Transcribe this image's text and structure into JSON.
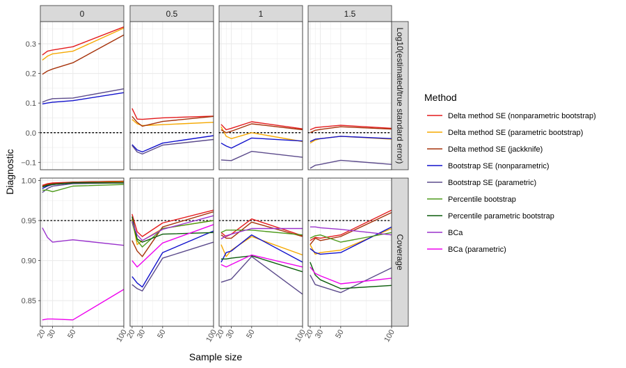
{
  "chart_data": {
    "type": "line",
    "xlabel": "Sample size",
    "ylabel": "Diagnostic",
    "x": [
      20,
      25,
      30,
      50,
      100
    ],
    "x_ticks": [
      20,
      30,
      50,
      100
    ],
    "x_lim": [
      18,
      100
    ],
    "columns": [
      "0",
      "0.5",
      "1",
      "1.5"
    ],
    "legend_title": "Method",
    "rows": [
      {
        "label": "Log10(estimated/true standard error)",
        "ylim": [
          -0.125,
          0.375
        ],
        "yticks": [
          -0.1,
          0.0,
          0.1,
          0.2,
          0.3
        ],
        "ytick_labels": [
          "−0.1",
          "0.0",
          "0.1",
          "0.2",
          "0.3"
        ],
        "reference": 0.0
      },
      {
        "label": "Coverage",
        "ylim": [
          0.818,
          1.003
        ],
        "yticks": [
          0.85,
          0.9,
          0.95,
          1.0
        ],
        "ytick_labels": [
          "0.85",
          "0.90",
          "0.95",
          "1.00"
        ],
        "reference": 0.95
      }
    ],
    "series": [
      {
        "name": "Delta method SE (nonparametric bootstrap)",
        "color": "#e41a1c",
        "values": [
          [
            [
              0.262,
              0.275,
              0.279,
              0.29,
              0.357
            ],
            [
              0.082,
              0.046,
              0.045,
              0.05,
              0.056
            ],
            [
              0.028,
              0.01,
              0.015,
              0.037,
              0.013
            ],
            [
              0.01,
              0.017,
              0.019,
              0.025,
              0.015
            ]
          ],
          [
            [
              0.994,
              0.996,
              0.997,
              0.998,
              0.999
            ],
            [
              0.958,
              0.936,
              0.93,
              0.947,
              0.963
            ],
            [
              0.935,
              0.93,
              0.933,
              0.952,
              0.931
            ],
            [
              0.925,
              0.929,
              0.928,
              0.932,
              0.963
            ]
          ]
        ]
      },
      {
        "name": "Delta method SE (parametric bootstrap)",
        "color": "#f5a800",
        "values": [
          [
            [
              0.245,
              0.258,
              0.266,
              0.275,
              0.353
            ],
            [
              0.045,
              0.03,
              0.024,
              0.027,
              0.035
            ],
            [
              0.02,
              -0.012,
              -0.02,
              0.0,
              -0.03
            ],
            [
              -0.035,
              -0.025,
              -0.02,
              -0.012,
              -0.022
            ]
          ],
          [
            [
              0.99,
              0.993,
              0.995,
              0.997,
              0.998
            ],
            [
              0.952,
              0.92,
              0.925,
              0.94,
              0.95
            ],
            [
              0.92,
              0.905,
              0.913,
              0.93,
              0.907
            ],
            [
              0.92,
              0.908,
              0.91,
              0.913,
              0.94
            ]
          ]
        ]
      },
      {
        "name": "Delta method SE (jackknife)",
        "color": "#a6320a",
        "values": [
          [
            [
              0.197,
              0.208,
              0.215,
              0.236,
              0.33
            ],
            [
              0.055,
              0.035,
              0.022,
              0.038,
              0.055
            ],
            [
              0.01,
              0.0,
              0.005,
              0.03,
              0.01
            ],
            [
              0.0,
              0.008,
              0.011,
              0.02,
              0.012
            ]
          ],
          [
            [
              0.993,
              0.995,
              0.996,
              0.998,
              0.999
            ],
            [
              0.925,
              0.912,
              0.905,
              0.942,
              0.961
            ],
            [
              0.932,
              0.928,
              0.928,
              0.948,
              0.93
            ],
            [
              0.92,
              0.928,
              0.925,
              0.93,
              0.96
            ]
          ]
        ]
      },
      {
        "name": "Bootstrap SE (nonparametric)",
        "color": "#1010cc",
        "values": [
          [
            [
              0.097,
              0.1,
              0.103,
              0.108,
              0.135
            ],
            [
              -0.04,
              -0.058,
              -0.065,
              -0.035,
              -0.01
            ],
            [
              -0.035,
              -0.045,
              -0.052,
              -0.018,
              -0.028
            ],
            [
              -0.03,
              -0.022,
              -0.02,
              -0.012,
              -0.02
            ]
          ],
          [
            [
              0.99,
              0.993,
              0.995,
              0.997,
              0.997
            ],
            [
              0.88,
              0.872,
              0.867,
              0.91,
              0.937
            ],
            [
              0.898,
              0.91,
              0.912,
              0.932,
              0.898
            ],
            [
              0.915,
              0.91,
              0.908,
              0.91,
              0.942
            ]
          ]
        ]
      },
      {
        "name": "Bootstrap SE (parametric)",
        "color": "#5b4a8b",
        "values": [
          [
            [
              0.103,
              0.11,
              0.115,
              0.117,
              0.148
            ],
            [
              -0.043,
              -0.065,
              -0.072,
              -0.042,
              -0.023
            ],
            [
              -0.092,
              -0.093,
              -0.094,
              -0.063,
              -0.083
            ],
            [
              -0.12,
              -0.11,
              -0.107,
              -0.093,
              -0.107
            ]
          ],
          [
            [
              0.985,
              0.99,
              0.993,
              0.996,
              0.997
            ],
            [
              0.87,
              0.865,
              0.862,
              0.903,
              0.923
            ],
            [
              0.873,
              0.875,
              0.877,
              0.905,
              0.858
            ],
            [
              0.882,
              0.87,
              0.868,
              0.86,
              0.891
            ]
          ]
        ]
      },
      {
        "name": "Percentile bootstrap",
        "color": "#4d9a1a",
        "values": [
          [
            [],
            [],
            [],
            []
          ],
          [
            [
              0.988,
              0.988,
              0.986,
              0.993,
              0.995
            ],
            [
              0.948,
              0.925,
              0.917,
              0.94,
              0.95
            ],
            [
              0.935,
              0.938,
              0.938,
              0.938,
              0.932
            ],
            [
              0.928,
              0.931,
              0.932,
              0.923,
              0.935
            ]
          ]
        ]
      },
      {
        "name": "Percentile parametric bootstrap",
        "color": "#0a5c0a",
        "values": [
          [
            [],
            [],
            [],
            []
          ],
          [
            [
              0.992,
              0.994,
              0.995,
              0.997,
              0.997
            ],
            [
              0.955,
              0.927,
              0.923,
              0.933,
              0.935
            ],
            [
              0.902,
              0.902,
              0.903,
              0.906,
              0.886
            ],
            [
              0.898,
              0.882,
              0.876,
              0.865,
              0.869
            ]
          ]
        ]
      },
      {
        "name": "BCa",
        "color": "#9932cc",
        "values": [
          [
            [],
            [],
            [],
            []
          ],
          [
            [
              0.941,
              0.929,
              0.923,
              0.926,
              0.919
            ],
            [
              0.949,
              0.932,
              0.925,
              0.939,
              0.956
            ],
            [
              0.927,
              0.931,
              0.933,
              0.94,
              0.94
            ],
            [
              0.942,
              0.942,
              0.941,
              0.939,
              0.932
            ]
          ]
        ]
      },
      {
        "name": "BCa (parametric)",
        "color": "#ee00ee",
        "values": [
          [
            [],
            [],
            [],
            []
          ],
          [
            [
              0.826,
              0.827,
              0.827,
              0.826,
              0.864
            ],
            [
              0.9,
              0.892,
              0.898,
              0.922,
              0.945
            ],
            [
              0.895,
              0.892,
              0.895,
              0.907,
              0.892
            ],
            [
              0.892,
              0.884,
              0.881,
              0.871,
              0.878
            ]
          ]
        ]
      }
    ]
  }
}
